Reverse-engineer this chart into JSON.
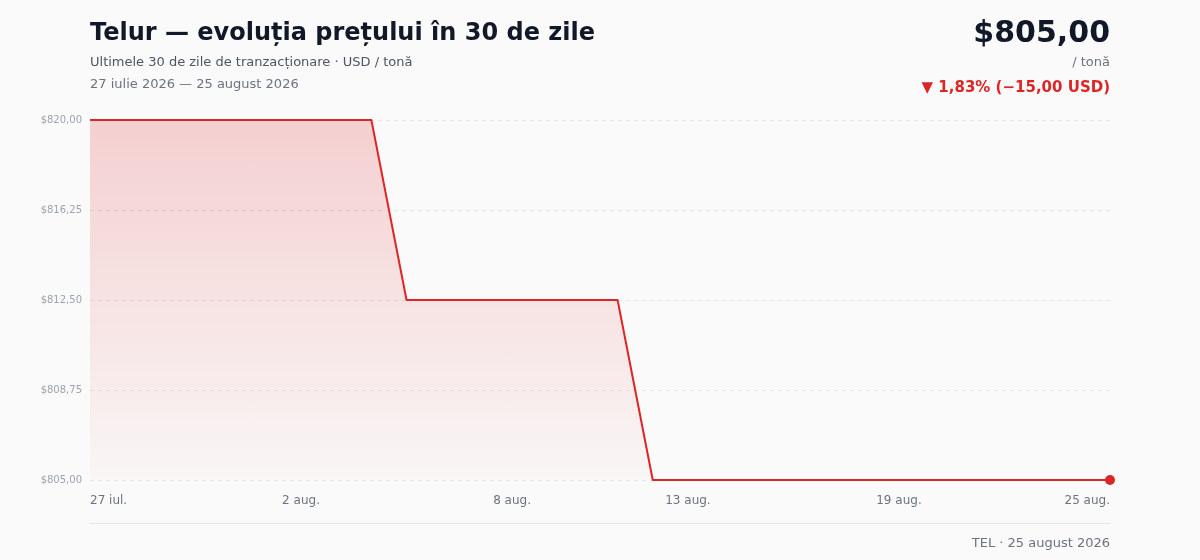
{
  "chart_data": {
    "type": "area",
    "title": "Telur — evoluția prețului în 30 de zile",
    "subtitle": "Ultimele 30 de zile de tranzacționare · USD / tonă",
    "annotations": [
      "27 iulie 2026 — 25 august 2026",
      "$805,00",
      "/ tonă",
      "▼ 1,83% (−15,00 USD)",
      "TEL · 25 august 2026"
    ],
    "x": [
      "--07-27",
      "--07-28",
      "--07-29",
      "--07-30",
      "--07-31",
      "--08-01",
      "--08-02",
      "--08-03",
      "--08-04",
      "--08-05",
      "--08-06",
      "--08-07",
      "--08-08",
      "--08-09",
      "--08-10",
      "--08-11",
      "--08-12",
      "--08-13",
      "--08-14",
      "--08-15",
      "--08-16",
      "--08-17",
      "--08-18",
      "--08-19",
      "--08-20",
      "--08-21",
      "--08-22",
      "--08-23",
      "--08-24",
      "--08-25"
    ],
    "xlim": [
      "--07-27",
      "--08-25"
    ],
    "xticks": [
      {
        "value": "--07-27",
        "label": "27 iul."
      },
      {
        "value": "--08-02",
        "label": "2 aug."
      },
      {
        "value": "--08-08",
        "label": "8 aug."
      },
      {
        "value": "--08-13",
        "label": "13 aug."
      },
      {
        "value": "--08-19",
        "label": "19 aug."
      },
      {
        "value": "--08-25",
        "label": "25 aug."
      }
    ],
    "series": [
      {
        "color": "#dc2626",
        "marker": "none",
        "values": [
          820,
          820,
          820,
          820,
          820,
          820,
          820,
          820,
          820,
          812.5,
          812.5,
          812.5,
          812.5,
          812.5,
          812.5,
          812.5,
          805,
          805,
          805,
          805,
          805,
          805,
          805,
          805,
          805,
          805,
          805,
          805,
          805,
          805
        ]
      },
      {
        "type": "scatter",
        "color": "#dc2626",
        "marker": "circle",
        "x": [
          "--08-25"
        ],
        "values": [
          805
        ]
      }
    ],
    "ylim": [
      805,
      820
    ],
    "yticks": [
      {
        "value": 805,
        "label": "$805,00"
      },
      {
        "value": 808.75,
        "label": "$808,75"
      },
      {
        "value": 812.5,
        "label": "$812,50"
      },
      {
        "value": 816.25,
        "label": "$816,25"
      },
      {
        "value": 820,
        "label": "$820,00"
      }
    ],
    "grid": "y",
    "legend": false,
    "line_style": "solid"
  }
}
